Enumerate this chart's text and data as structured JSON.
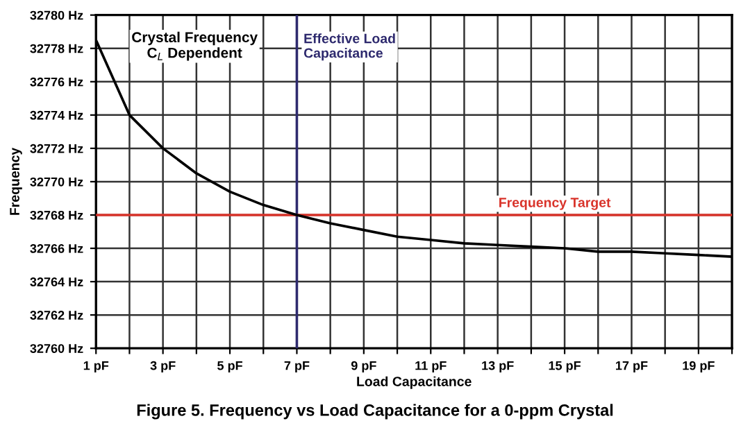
{
  "chart_data": {
    "type": "line",
    "title": "Figure 5. Frequency vs Load Capacitance for a 0-ppm Crystal",
    "xlabel": "Load Capacitance",
    "ylabel": "Frequency",
    "x": [
      1,
      2,
      3,
      4,
      5,
      6,
      7,
      8,
      9,
      10,
      11,
      12,
      13,
      14,
      15,
      16,
      17,
      18,
      19,
      20
    ],
    "series": [
      {
        "color": "#000000",
        "values": [
          32778.5,
          32774.0,
          32772.0,
          32770.5,
          32769.4,
          32768.6,
          32768.0,
          32767.5,
          32767.1,
          32766.7,
          32766.5,
          32766.3,
          32766.2,
          32766.1,
          32766.0,
          32765.8,
          32765.8,
          32765.7,
          32765.6,
          32765.5
        ]
      }
    ],
    "xlim": [
      1,
      20
    ],
    "xticks": [
      {
        "value": 1,
        "label": "1 pF"
      },
      {
        "value": 2,
        "label": null
      },
      {
        "value": 3,
        "label": "3 pF"
      },
      {
        "value": 4,
        "label": null
      },
      {
        "value": 5,
        "label": "5 pF"
      },
      {
        "value": 6,
        "label": null
      },
      {
        "value": 7,
        "label": "7 pF"
      },
      {
        "value": 8,
        "label": null
      },
      {
        "value": 9,
        "label": "9 pF"
      },
      {
        "value": 10,
        "label": null
      },
      {
        "value": 11,
        "label": "11 pF"
      },
      {
        "value": 12,
        "label": null
      },
      {
        "value": 13,
        "label": "13 pF"
      },
      {
        "value": 14,
        "label": null
      },
      {
        "value": 15,
        "label": "15 pF"
      },
      {
        "value": 16,
        "label": null
      },
      {
        "value": 17,
        "label": "17 pF"
      },
      {
        "value": 18,
        "label": null
      },
      {
        "value": 19,
        "label": "19 pF"
      },
      {
        "value": 20,
        "label": null
      }
    ],
    "ylim": [
      32760,
      32780
    ],
    "yticks": [
      {
        "value": 32760,
        "label": "32760 Hz"
      },
      {
        "value": 32762,
        "label": "32762 Hz"
      },
      {
        "value": 32764,
        "label": "32764 Hz"
      },
      {
        "value": 32766,
        "label": "32766 Hz"
      },
      {
        "value": 32768,
        "label": "32768 Hz"
      },
      {
        "value": 32770,
        "label": "32770 Hz"
      },
      {
        "value": 32772,
        "label": "32772 Hz"
      },
      {
        "value": 32774,
        "label": "32774 Hz"
      },
      {
        "value": 32776,
        "label": "32776 Hz"
      },
      {
        "value": 32778,
        "label": "32778 Hz"
      },
      {
        "value": 32780,
        "label": "32780 Hz"
      }
    ],
    "ref_lines": [
      {
        "axis": "x",
        "value": 7,
        "label": "Effective Load\nCapacitance",
        "color": "#2e2a6e"
      },
      {
        "axis": "y",
        "value": 32768,
        "label": "Frequency Target",
        "color": "#d9342b"
      }
    ],
    "annotations": [
      "Crystal Frequency\nC$_{L}$ Dependent"
    ],
    "grid": true,
    "marker": "none",
    "line_style": "solid"
  }
}
